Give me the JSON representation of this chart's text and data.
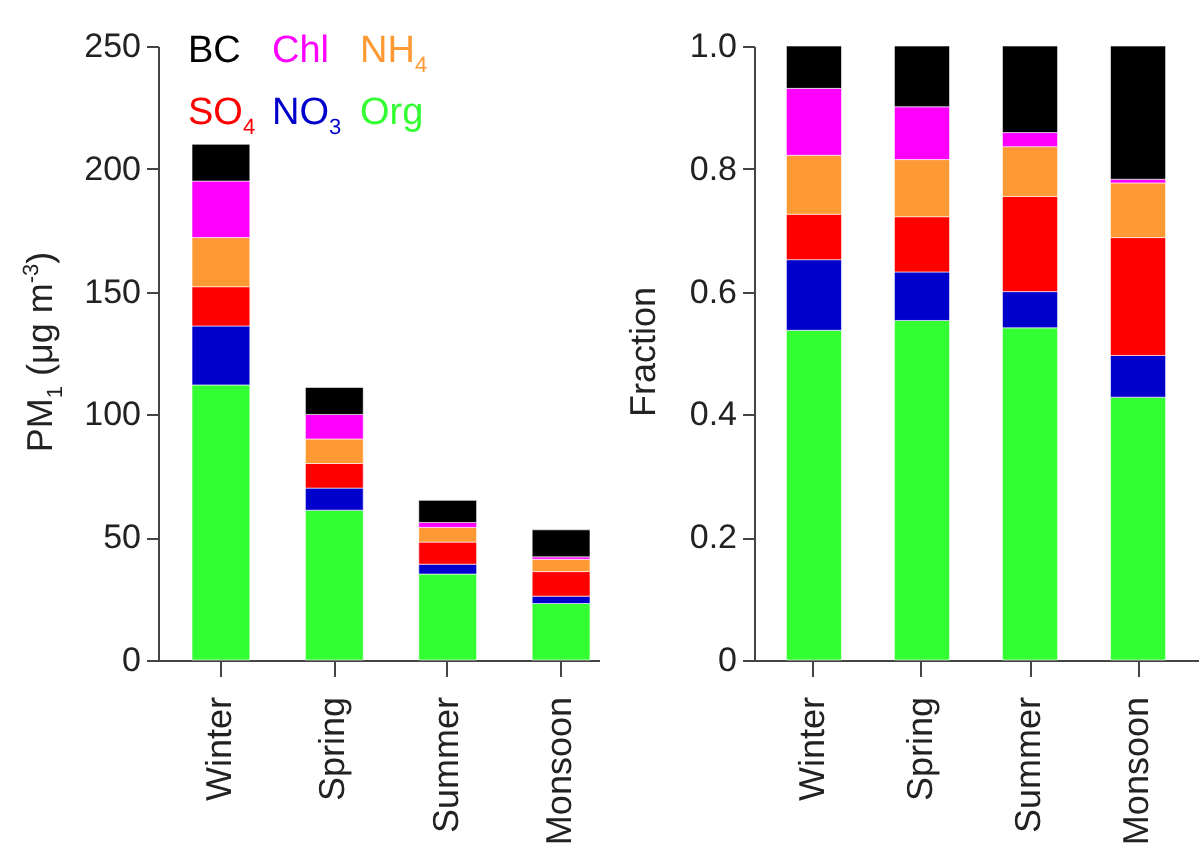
{
  "chart_data": [
    {
      "type": "bar",
      "stacked": true,
      "ylabel": "PM$_{1}$ (μg m$^{-3}$)",
      "categories": [
        "Winter",
        "Spring",
        "Summer",
        "Monsoon"
      ],
      "ylim": [
        0,
        250
      ],
      "yticks": [
        0,
        50,
        100,
        150,
        200,
        250
      ],
      "legend": "top",
      "grid": false,
      "series": [
        {
          "name": "Org",
          "color": "#33ff33",
          "values": [
            112,
            61,
            35,
            23
          ]
        },
        {
          "name": "NO$_{3}$",
          "color": "#0000cc",
          "values": [
            24,
            9,
            4,
            3
          ]
        },
        {
          "name": "SO$_{4}$",
          "color": "#ff0000",
          "values": [
            16,
            10,
            9,
            10
          ]
        },
        {
          "name": "NH$_{4}$",
          "color": "#ff9933",
          "values": [
            20,
            10,
            6,
            5
          ]
        },
        {
          "name": "Chl",
          "color": "#ff00ff",
          "values": [
            23,
            10,
            2,
            1
          ]
        },
        {
          "name": "BC",
          "color": "#000000",
          "values": [
            15,
            11,
            9,
            11
          ]
        }
      ]
    },
    {
      "type": "bar",
      "stacked": true,
      "ylabel": "Fraction",
      "categories": [
        "Winter",
        "Spring",
        "Summer",
        "Monsoon"
      ],
      "ylim": [
        0,
        1
      ],
      "yticks": [
        0,
        0.2,
        0.4,
        0.6,
        0.8,
        {
          "value": 1,
          "label": "1.0"
        }
      ],
      "legend": false,
      "grid": false,
      "series": [
        {
          "color": "#33ff33",
          "values": [
            0.537,
            0.553,
            0.541,
            0.428
          ]
        },
        {
          "color": "#0000cc",
          "values": [
            0.115,
            0.079,
            0.059,
            0.068
          ]
        },
        {
          "color": "#ff0000",
          "values": [
            0.074,
            0.09,
            0.155,
            0.192
          ]
        },
        {
          "color": "#ff9933",
          "values": [
            0.096,
            0.093,
            0.081,
            0.089
          ]
        },
        {
          "color": "#ff00ff",
          "values": [
            0.109,
            0.086,
            0.023,
            0.006
          ]
        },
        {
          "color": "#000000",
          "values": [
            0.069,
            0.099,
            0.141,
            0.217
          ]
        }
      ]
    }
  ]
}
